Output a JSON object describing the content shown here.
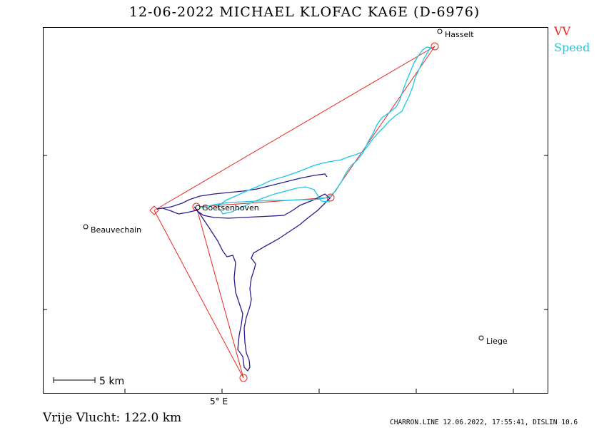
{
  "title": "12-06-2022   MICHAEL KLOFAC   KA6E (D-6976)",
  "legend": {
    "vv": "VV",
    "vv_color": "#e8281e",
    "speed": "Speed",
    "speed_color": "#19c8e6"
  },
  "track_color": "#2d1a8c",
  "places": [
    {
      "name": "Hasselt"
    },
    {
      "name": "Beauvechain"
    },
    {
      "name": "Goetsenhoven"
    },
    {
      "name": "Liege"
    }
  ],
  "scale_label": "5 km",
  "x_axis_label": "5° E",
  "distance_label": "Vrije Vlucht:  122.0 km",
  "software_label": "CHARRON.LINE 12.06.2022, 17:55:41, DISLIN 10.6"
}
